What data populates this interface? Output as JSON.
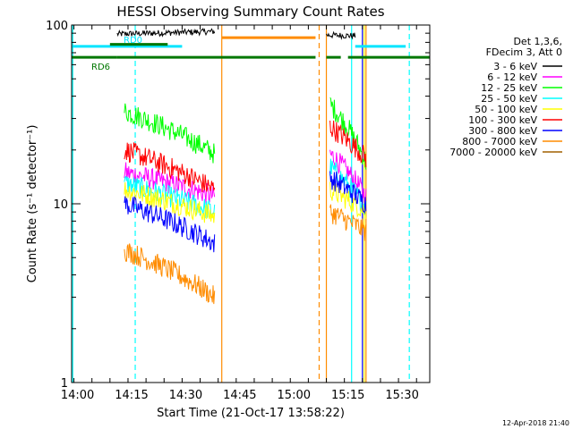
{
  "chart_data": {
    "type": "line",
    "title": "HESSI Observing Summary Count Rates",
    "xlabel": "Start Time (21-Oct-17 13:58:22)",
    "ylabel": "Count Rate (s⁻¹ detector⁻¹)",
    "yscale": "log",
    "ylim": [
      1,
      100
    ],
    "xlim": [
      "13:58:22",
      "15:37:40"
    ],
    "x_ticks": [
      "14:00",
      "14:15",
      "14:30",
      "14:45",
      "15:00",
      "15:15",
      "15:30"
    ],
    "y_ticks": [
      "1",
      "10",
      "100"
    ],
    "legend_header": [
      "Det 1,3,6,",
      "FDecim 3, Att 0"
    ],
    "series": [
      {
        "name": "3 - 6 keV",
        "color": "#000000",
        "segments": [
          {
            "start": "14:11",
            "end": "14:38",
            "level_start": 89,
            "level_end": 92
          },
          {
            "start": "15:09",
            "end": "15:17",
            "level_start": 88,
            "level_end": 87
          }
        ]
      },
      {
        "name": "6 - 12 keV",
        "color": "#ff00ff",
        "segments": [
          {
            "start": "14:13",
            "end": "14:38",
            "level_start": 15,
            "level_end": 11
          },
          {
            "start": "15:10",
            "end": "15:20",
            "level_start": 19,
            "level_end": 11
          }
        ]
      },
      {
        "name": "12 - 25 keV",
        "color": "#00ff00",
        "segments": [
          {
            "start": "14:13",
            "end": "14:38",
            "level_start": 33,
            "level_end": 19
          },
          {
            "start": "15:10",
            "end": "15:20",
            "level_start": 36,
            "level_end": 17
          }
        ]
      },
      {
        "name": "25 - 50 keV",
        "color": "#00ffff",
        "segments": [
          {
            "start": "14:13",
            "end": "14:38",
            "level_start": 13,
            "level_end": 9
          },
          {
            "start": "15:10",
            "end": "15:20",
            "level_start": 16,
            "level_end": 9.5
          }
        ]
      },
      {
        "name": "50 - 100 keV",
        "color": "#ffff00",
        "segments": [
          {
            "start": "14:13",
            "end": "14:38",
            "level_start": 12,
            "level_end": 8.5
          },
          {
            "start": "15:10",
            "end": "15:20",
            "level_start": 12,
            "level_end": 9
          }
        ]
      },
      {
        "name": "100 - 300 keV",
        "color": "#ff0000",
        "segments": [
          {
            "start": "14:13",
            "end": "14:38",
            "level_start": 20,
            "level_end": 12
          },
          {
            "start": "15:10",
            "end": "15:20",
            "level_start": 27,
            "level_end": 18
          }
        ]
      },
      {
        "name": "300 - 800 keV",
        "color": "#0000ff",
        "segments": [
          {
            "start": "14:13",
            "end": "14:38",
            "level_start": 10,
            "level_end": 6
          },
          {
            "start": "15:10",
            "end": "15:20",
            "level_start": 14,
            "level_end": 10
          }
        ]
      },
      {
        "name": "800 - 7000 keV",
        "color": "#ff8c00",
        "segments": [
          {
            "start": "14:13",
            "end": "14:38",
            "level_start": 5.5,
            "level_end": 3
          },
          {
            "start": "15:10",
            "end": "15:20",
            "level_start": 9,
            "level_end": 7
          }
        ]
      },
      {
        "name": "7000 - 20000 keV",
        "color": "#a06000",
        "segments": []
      }
    ],
    "flags": [
      {
        "label": "RD6",
        "color": "#007700",
        "level": 66,
        "spans": [
          [
            "13:58:22",
            "14:11"
          ],
          [
            "14:11",
            "15:06"
          ],
          [
            "15:09",
            "15:13"
          ],
          [
            "15:15",
            "15:37:40"
          ]
        ]
      },
      {
        "label": "RD0",
        "color": "#00e5ff",
        "level": 76,
        "spans": [
          [
            "13:58:22",
            "14:29"
          ],
          [
            "15:17",
            "15:31"
          ]
        ]
      },
      {
        "label": "",
        "color": "#ff8c00",
        "level": 85,
        "spans": [
          [
            "14:40",
            "15:06"
          ]
        ]
      },
      {
        "label": "",
        "color": "#007700",
        "level": 78,
        "spans": [
          [
            "14:09",
            "14:25"
          ]
        ]
      }
    ],
    "vlines": [
      {
        "time": "13:58:40",
        "color": "#00ffff",
        "style": "solid"
      },
      {
        "time": "14:16",
        "color": "#00ffff",
        "style": "dashed"
      },
      {
        "time": "14:40",
        "color": "#ff8c00",
        "style": "solid"
      },
      {
        "time": "15:07",
        "color": "#ff8c00",
        "style": "dashed"
      },
      {
        "time": "15:09",
        "color": "#ff8c00",
        "style": "solid"
      },
      {
        "time": "15:16",
        "color": "#00ffff",
        "style": "solid"
      },
      {
        "time": "15:19",
        "color": "#0000ff",
        "style": "solid"
      },
      {
        "time": "15:19:30",
        "color": "#ffff00",
        "style": "solid"
      },
      {
        "time": "15:20",
        "color": "#ff8c00",
        "style": "solid"
      },
      {
        "time": "15:32",
        "color": "#00ffff",
        "style": "dashed"
      }
    ],
    "grid": false,
    "legend_position": "right"
  },
  "timestamp": "12-Apr-2018 21:40"
}
